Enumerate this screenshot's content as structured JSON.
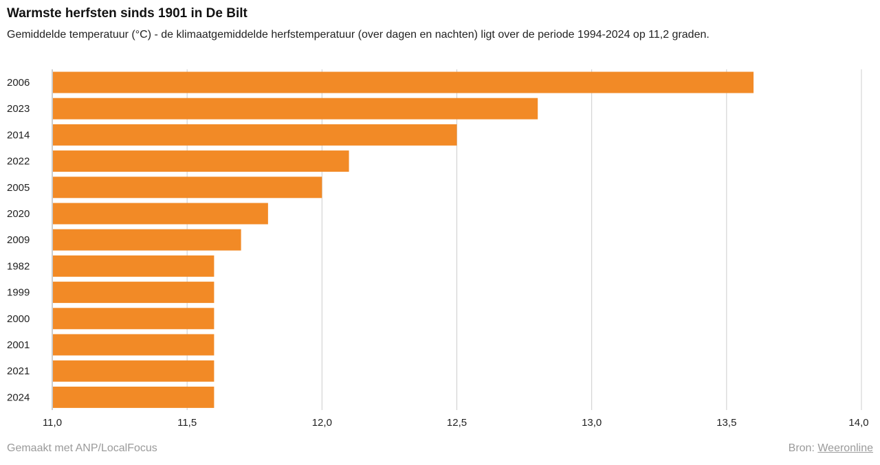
{
  "header": {
    "title": "Warmste herfsten sinds 1901 in De Bilt",
    "subtitle": "Gemiddelde temperatuur (°C) - de klimaatgemiddelde herfstemperatuur (over dagen en nachten) ligt over de periode 1994-2024 op 11,2 graden."
  },
  "footer": {
    "made_with": "Gemaakt met ANP/LocalFocus",
    "source_label": "Bron:",
    "source_link": "Weeronline"
  },
  "colors": {
    "bar": "#f28a26",
    "grid": "#cccccc",
    "axis": "#999999"
  },
  "chart_data": {
    "type": "bar",
    "orientation": "horizontal",
    "categories": [
      "2006",
      "2023",
      "2014",
      "2022",
      "2005",
      "2020",
      "2009",
      "1982",
      "1999",
      "2000",
      "2001",
      "2021",
      "2024"
    ],
    "values": [
      13.6,
      12.8,
      12.5,
      12.1,
      12.0,
      11.8,
      11.7,
      11.6,
      11.6,
      11.6,
      11.6,
      11.6,
      11.6
    ],
    "xlim": [
      11.0,
      14.0
    ],
    "xticks": [
      11.0,
      11.5,
      12.0,
      12.5,
      13.0,
      13.5,
      14.0
    ],
    "xtick_labels": [
      "11,0",
      "11,5",
      "12,0",
      "12,5",
      "13,0",
      "13,5",
      "14,0"
    ],
    "grid": true,
    "legend": "none"
  }
}
